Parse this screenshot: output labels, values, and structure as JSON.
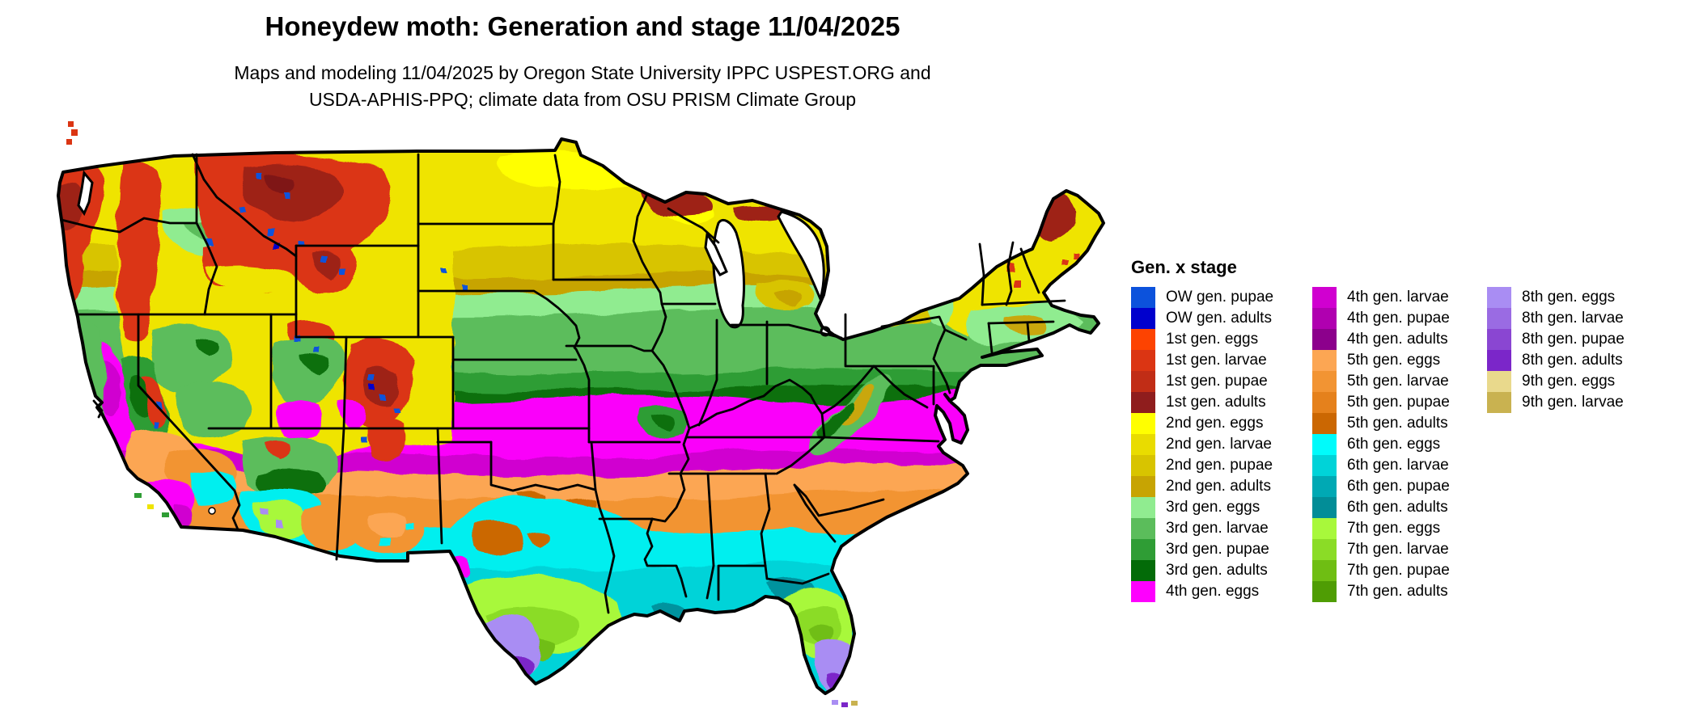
{
  "header": {
    "title": "Honeydew moth: Generation and stage 11/04/2025",
    "subtitle_line1": "Maps and modeling 11/04/2025 by Oregon State University IPPC USPEST.ORG and",
    "subtitle_line2": "USDA-APHIS-PPQ; climate data from OSU PRISM Climate Group"
  },
  "map": {
    "kind": "choropleth-raster",
    "region": "Continental United States",
    "state_border_color": "#000000",
    "water_color": "#ffffff"
  },
  "legend": {
    "title": "Gen. x stage",
    "columns": [
      [
        {
          "label": "OW gen. pupae",
          "color": "#0c52dc"
        },
        {
          "label": "OW gen. adults",
          "color": "#0000cd"
        },
        {
          "label": "1st gen. eggs",
          "color": "#fd4301"
        },
        {
          "label": "1st gen. larvae",
          "color": "#db3513"
        },
        {
          "label": "1st gen. pupae",
          "color": "#c12d16"
        },
        {
          "label": "1st gen. adults",
          "color": "#8f1d1d"
        },
        {
          "label": "2nd gen. eggs",
          "color": "#ffff00"
        },
        {
          "label": "2nd gen. larvae",
          "color": "#e9dc00"
        },
        {
          "label": "2nd gen. pupae",
          "color": "#d8c400"
        },
        {
          "label": "2nd gen. adults",
          "color": "#c7a403"
        },
        {
          "label": "3rd gen. eggs",
          "color": "#90ec90"
        },
        {
          "label": "3rd gen. larvae",
          "color": "#5bbd5b"
        },
        {
          "label": "3rd gen. pupae",
          "color": "#2f9d35"
        },
        {
          "label": "3rd gen. adults",
          "color": "#036b08"
        },
        {
          "label": "4th gen. eggs",
          "color": "#fe00fe"
        }
      ],
      [
        {
          "label": "4th gen. larvae",
          "color": "#d000d0"
        },
        {
          "label": "4th gen. pupae",
          "color": "#b000b0"
        },
        {
          "label": "4th gen. adults",
          "color": "#8c008c"
        },
        {
          "label": "5th gen. eggs",
          "color": "#fca653"
        },
        {
          "label": "5th gen. larvae",
          "color": "#f29433"
        },
        {
          "label": "5th gen. pupae",
          "color": "#e5811c"
        },
        {
          "label": "5th gen. adults",
          "color": "#cb6702"
        },
        {
          "label": "6th gen. eggs",
          "color": "#00fbfb"
        },
        {
          "label": "6th gen. larvae",
          "color": "#00d3d8"
        },
        {
          "label": "6th gen. pupae",
          "color": "#00a9b4"
        },
        {
          "label": "6th gen. adults",
          "color": "#028d97"
        },
        {
          "label": "7th gen. eggs",
          "color": "#a8f83b"
        },
        {
          "label": "7th gen. larvae",
          "color": "#8bdc26"
        },
        {
          "label": "7th gen. pupae",
          "color": "#6fbe13"
        },
        {
          "label": "7th gen. adults",
          "color": "#4f9d04"
        }
      ],
      [
        {
          "label": "8th gen. eggs",
          "color": "#a98df3"
        },
        {
          "label": "8th gen. larvae",
          "color": "#9a6be3"
        },
        {
          "label": "8th gen. pupae",
          "color": "#8a46d2"
        },
        {
          "label": "8th gen. adults",
          "color": "#7b26c9"
        },
        {
          "label": "9th gen. eggs",
          "color": "#e9d98c"
        },
        {
          "label": "9th gen. larvae",
          "color": "#c9b250"
        }
      ]
    ]
  }
}
